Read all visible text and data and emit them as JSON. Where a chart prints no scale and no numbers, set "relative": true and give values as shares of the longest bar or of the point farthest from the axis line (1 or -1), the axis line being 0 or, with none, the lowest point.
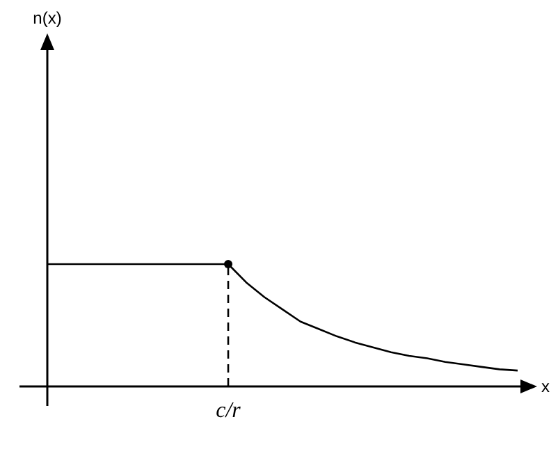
{
  "chart_data": {
    "type": "line",
    "relative": true,
    "xlabel": "x",
    "annotations": [
      "n(x)",
      "c/r"
    ],
    "categories": [
      null,
      null,
      null,
      null,
      null,
      null,
      null,
      null,
      null,
      null,
      null,
      null,
      null,
      null,
      null,
      null,
      null,
      null,
      null,
      null,
      null,
      null,
      null,
      null,
      null,
      null,
      null
    ],
    "series": [
      {
        "color": "#000000",
        "values": [
          1,
          1,
          1,
          1,
          1,
          1,
          1,
          1,
          1,
          1,
          1,
          0.85,
          0.73,
          0.63,
          0.53,
          0.47,
          0.41,
          0.36,
          0.32,
          0.28,
          0.25,
          0.23,
          0.2,
          0.18,
          0.16,
          0.14,
          0.13
        ]
      }
    ]
  }
}
